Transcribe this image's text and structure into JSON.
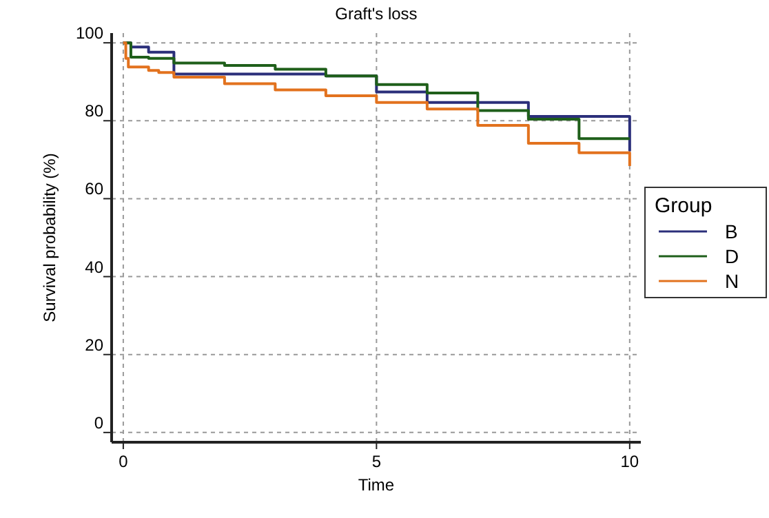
{
  "chart_data": {
    "type": "step",
    "title": "Graft's loss",
    "xlabel": "Time",
    "ylabel": "Survival probability (%)",
    "legend_title": "Group",
    "legend": "right",
    "grid": true,
    "line_style": "solid",
    "xlim": [
      -0.23,
      10.22
    ],
    "ylim": [
      -2.5,
      102.5
    ],
    "xticks": [
      0,
      5,
      10
    ],
    "yticks": [
      0,
      20,
      40,
      60,
      80,
      100
    ],
    "series": [
      {
        "name": "B",
        "color": "#2b2f7a",
        "x": [
          0,
          0.15,
          0.5,
          1,
          4,
          5,
          6,
          8,
          10
        ],
        "values": [
          100,
          98.9,
          97.6,
          92,
          91.5,
          87.4,
          84.7,
          81.1,
          72.2
        ]
      },
      {
        "name": "D",
        "color": "#1f5f1a",
        "x": [
          0,
          0.15,
          0.5,
          1,
          2,
          3,
          4,
          5,
          6,
          7,
          8,
          9,
          10
        ],
        "values": [
          100,
          96.3,
          96,
          94.8,
          94.2,
          93.2,
          91.5,
          89.3,
          87.1,
          82.6,
          80.4,
          75.4,
          75.4
        ]
      },
      {
        "name": "N",
        "color": "#e2721e",
        "x": [
          0,
          0.05,
          0.1,
          0.5,
          0.7,
          1,
          2,
          3,
          4,
          5,
          6,
          7,
          8,
          9,
          10
        ],
        "values": [
          100,
          96,
          93.8,
          92.9,
          92.4,
          91.2,
          89.5,
          87.9,
          86.4,
          84.7,
          83,
          78.8,
          74.2,
          71.8,
          68.4
        ]
      }
    ]
  }
}
